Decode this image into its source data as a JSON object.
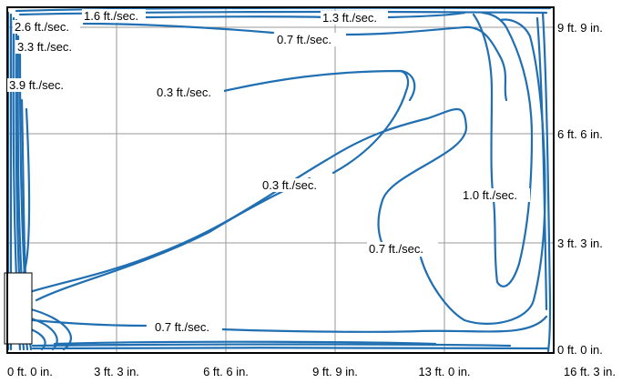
{
  "diagram": {
    "x_ticks": [
      "0 ft. 0 in.",
      "3 ft. 3 in.",
      "6 ft. 6 in.",
      "9 ft. 9 in.",
      "13 ft. 0 in.",
      "16 ft. 3 in."
    ],
    "y_ticks": [
      "9 ft. 9 in.",
      "6 ft. 6 in.",
      "3 ft. 3 in.",
      "0 ft. 0 in."
    ],
    "contour_labels": {
      "v16": "1.6 ft./sec.",
      "v13": "1.3 ft./sec.",
      "v26": "2.6 ft./sec.",
      "v33": "3.3 ft./sec.",
      "v39": "3.9 ft./sec.",
      "v07_top": "0.7 ft./sec.",
      "v03_top": "0.3 ft./sec.",
      "v03_mid": "0.3 ft./sec.",
      "v10": "1.0 ft./sec.",
      "v07_right": "0.7 ft./sec.",
      "v07_bottom": "0.7 ft./sec."
    },
    "line_color": "#1f6fb2",
    "grid_color": "#9a9a9a"
  }
}
